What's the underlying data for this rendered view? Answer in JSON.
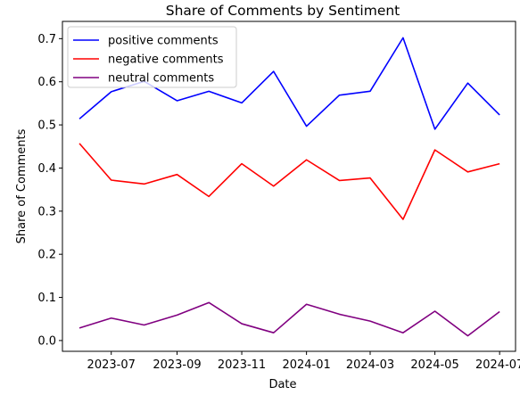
{
  "chart_data": {
    "type": "line",
    "title": "Share of Comments by Sentiment",
    "xlabel": "Date",
    "ylabel": "Share of Comments",
    "x": [
      "2023-06",
      "2023-07",
      "2023-08",
      "2023-09",
      "2023-10",
      "2023-11",
      "2023-12",
      "2024-01",
      "2024-02",
      "2024-03",
      "2024-04",
      "2024-05",
      "2024-06",
      "2024-07"
    ],
    "x_ticks": [
      "2023-07",
      "2023-09",
      "2023-11",
      "2024-01",
      "2024-03",
      "2024-05",
      "2024-07"
    ],
    "y_ticks": [
      "0.0",
      "0.1",
      "0.2",
      "0.3",
      "0.4",
      "0.5",
      "0.6",
      "0.7"
    ],
    "ylim": [
      -0.025,
      0.74
    ],
    "xlim": [
      "2023-05-16",
      "2024-07-16"
    ],
    "grid": false,
    "legend_position": "top-left",
    "series": [
      {
        "name": "positive comments",
        "color": "#0000ff",
        "values": [
          0.514,
          0.577,
          0.601,
          0.556,
          0.578,
          0.551,
          0.624,
          0.497,
          0.569,
          0.578,
          0.702,
          0.49,
          0.597,
          0.523
        ]
      },
      {
        "name": "negative comments",
        "color": "#ff0000",
        "values": [
          0.457,
          0.372,
          0.363,
          0.385,
          0.334,
          0.41,
          0.358,
          0.419,
          0.371,
          0.377,
          0.281,
          0.442,
          0.391,
          0.41
        ]
      },
      {
        "name": "neutral comments",
        "color": "#800080",
        "values": [
          0.029,
          0.052,
          0.036,
          0.059,
          0.088,
          0.039,
          0.018,
          0.084,
          0.061,
          0.045,
          0.018,
          0.068,
          0.011,
          0.067
        ]
      }
    ]
  }
}
